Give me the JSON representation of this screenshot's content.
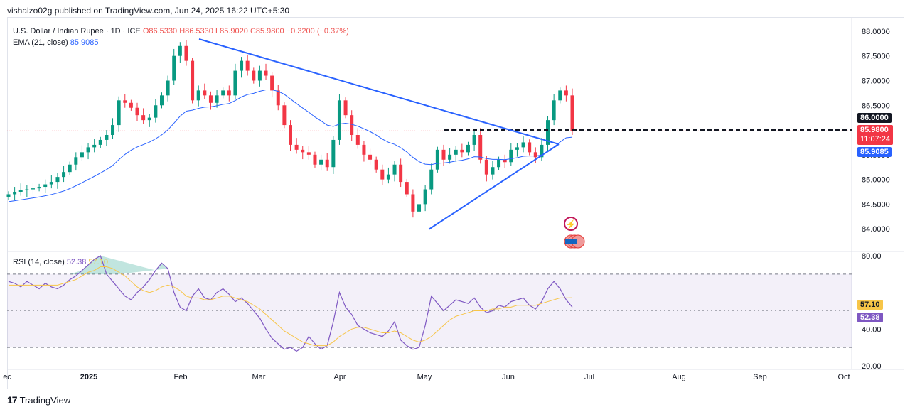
{
  "header": {
    "published": "vishalzo02g published on TradingView.com, Jun 24, 2025 16:22 UTC+5:30"
  },
  "legend": {
    "symbol": "U.S. Dollar / Indian Rupee · 1D · ICE",
    "o": "O86.5330",
    "h": "H86.5330",
    "l": "L85.9020",
    "c": "C85.9800",
    "chg": "−0.3200 (−0.37%)",
    "ema_label": "EMA (21, close)",
    "ema_value": "85.9085"
  },
  "rsi_legend": {
    "label": "RSI (14, close)",
    "rsi": "52.38",
    "ma": "57.10"
  },
  "price_tags": {
    "level": "86.0000",
    "last": "85.9800",
    "countdown": "11:07:24",
    "ema": "85.9085",
    "rsi": "52.38",
    "rsi_ma": "57.10"
  },
  "colors": {
    "up": "#089981",
    "down": "#f23645",
    "ema": "#2962ff",
    "rsi": "#7e57c2",
    "rsi_ma": "#f7c548",
    "trend": "#2962ff"
  },
  "footer": {
    "brand": "TradingView",
    "logo": "17"
  },
  "chart_data": {
    "type": "candlestick",
    "title": "U.S. Dollar / Indian Rupee · 1D · ICE",
    "y_ticks": [
      "88.0000",
      "87.5000",
      "87.0000",
      "86.5000",
      "86.0000",
      "85.5000",
      "85.0000",
      "84.5000",
      "84.0000"
    ],
    "ylim": [
      83.6,
      88.2
    ],
    "x_ticks": [
      "ec",
      "2025",
      "Feb",
      "Mar",
      "Apr",
      "May",
      "Jun",
      "Jul",
      "Aug",
      "Sep",
      "Oct"
    ],
    "close_series": [
      84.7,
      84.75,
      84.78,
      84.8,
      84.82,
      84.85,
      84.9,
      84.95,
      85.05,
      85.15,
      85.3,
      85.45,
      85.55,
      85.65,
      85.7,
      85.8,
      85.9,
      86.1,
      86.6,
      86.55,
      86.45,
      86.3,
      86.2,
      86.25,
      86.5,
      86.7,
      87.0,
      87.5,
      87.7,
      87.4,
      86.6,
      86.8,
      86.7,
      86.55,
      86.7,
      86.8,
      86.7,
      87.2,
      87.4,
      87.2,
      87.0,
      87.2,
      87.1,
      86.8,
      86.5,
      86.1,
      85.7,
      85.6,
      85.55,
      85.5,
      85.3,
      85.4,
      85.25,
      85.8,
      86.6,
      86.3,
      85.9,
      85.7,
      85.5,
      85.4,
      85.2,
      85.0,
      85.1,
      85.3,
      84.95,
      84.7,
      84.35,
      84.5,
      84.8,
      85.2,
      85.6,
      85.4,
      85.5,
      85.6,
      85.55,
      85.7,
      85.9,
      85.4,
      85.1,
      85.25,
      85.4,
      85.35,
      85.6,
      85.65,
      85.75,
      85.55,
      85.45,
      85.7,
      86.2,
      86.6,
      86.8,
      86.7,
      85.98
    ],
    "ema_value": 85.9085,
    "level": 86.0,
    "rsi": {
      "range": [
        20,
        80
      ],
      "ticks": [
        "80.00",
        "40.00",
        "20.00"
      ],
      "bands": [
        30,
        70
      ],
      "value": 52.38,
      "ma": 57.1,
      "series": [
        66,
        65,
        63,
        66,
        64,
        62,
        65,
        63,
        62,
        64,
        67,
        69,
        72,
        75,
        78,
        80,
        70,
        66,
        62,
        58,
        56,
        60,
        63,
        67,
        72,
        76,
        73,
        60,
        52,
        50,
        58,
        62,
        57,
        56,
        60,
        62,
        59,
        55,
        57,
        54,
        50,
        46,
        40,
        35,
        32,
        29,
        30,
        28,
        30,
        36,
        32,
        29,
        31,
        44,
        60,
        52,
        48,
        42,
        40,
        38,
        37,
        36,
        39,
        44,
        34,
        31,
        29,
        30,
        42,
        58,
        54,
        50,
        53,
        56,
        55,
        54,
        57,
        52,
        49,
        50,
        53,
        52,
        55,
        56,
        57,
        53,
        51,
        55,
        62,
        66,
        62,
        56,
        52
      ],
      "ma_series": [
        64,
        64,
        64,
        64,
        64,
        64,
        64,
        64,
        64,
        65,
        66,
        67,
        69,
        71,
        72,
        74,
        74,
        73,
        71,
        69,
        66,
        63,
        61,
        60,
        61,
        63,
        64,
        63,
        61,
        58,
        57,
        57,
        56,
        56,
        57,
        58,
        58,
        57,
        56,
        55,
        53,
        51,
        48,
        45,
        42,
        39,
        37,
        35,
        33,
        32,
        31,
        31,
        31,
        33,
        36,
        38,
        40,
        41,
        41,
        40,
        39,
        38,
        38,
        39,
        38,
        36,
        34,
        33,
        34,
        36,
        39,
        42,
        45,
        47,
        48,
        49,
        50,
        50,
        50,
        51,
        51,
        52,
        52,
        53,
        53,
        53,
        53,
        54,
        55,
        56,
        57,
        57,
        57.1
      ]
    }
  }
}
